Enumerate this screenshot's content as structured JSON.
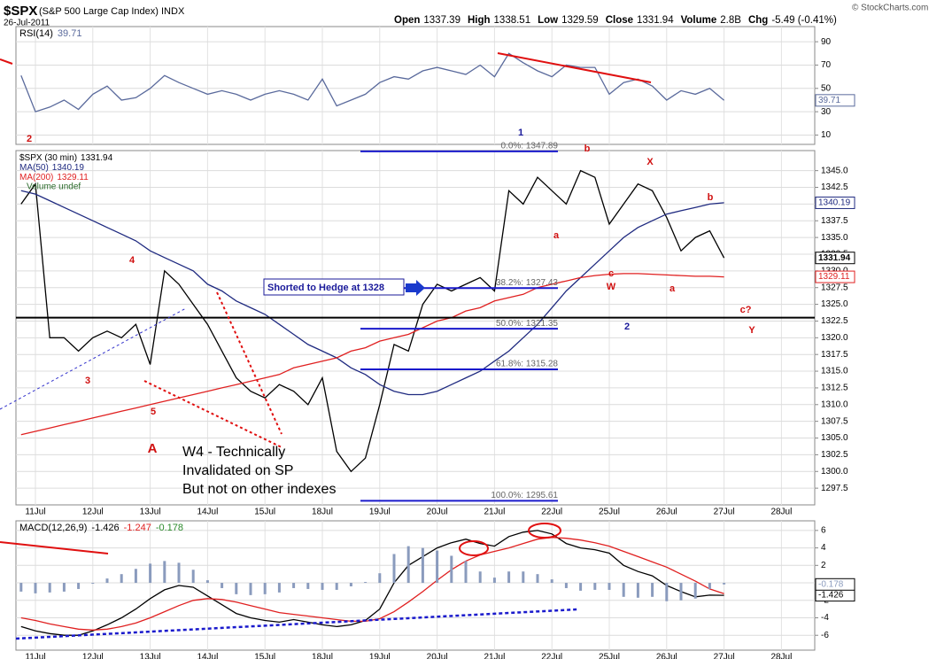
{
  "header": {
    "symbol": "$SPX",
    "name": "(S&P 500 Large Cap Index) INDX",
    "date": "26-Jul-2011",
    "fields": [
      {
        "label": "Open",
        "value": 1337.39
      },
      {
        "label": "High",
        "value": 1338.51
      },
      {
        "label": "Low",
        "value": 1329.59
      },
      {
        "label": "Close",
        "value": 1331.94
      },
      {
        "label": "Volume",
        "value": "2.8B"
      },
      {
        "label": "Chg",
        "value": "-5.49 (-0.41%)"
      }
    ],
    "source": "© StockCharts.com"
  },
  "chart_data": [
    {
      "type": "line",
      "title": "RSI(14)",
      "x": [
        null,
        "11Jul",
        null,
        null,
        null,
        "12Jul",
        null,
        null,
        null,
        "13Jul",
        null,
        null,
        null,
        "14Jul",
        null,
        null,
        null,
        "15Jul",
        null,
        null,
        null,
        "18Jul",
        null,
        null,
        null,
        "19Jul",
        null,
        null,
        null,
        "20Jul",
        null,
        null,
        null,
        "21Jul",
        null,
        null,
        null,
        "22Jul",
        null,
        null,
        null,
        "25Jul",
        null,
        null,
        null,
        "26Jul",
        null,
        null,
        null,
        "27Jul",
        null,
        null,
        null,
        "28Jul"
      ],
      "series": [
        {
          "color": "#5a6a9c",
          "label_last": true,
          "values": [
            61,
            30,
            34,
            40,
            32,
            45,
            52,
            40,
            42,
            50,
            61,
            55,
            50,
            45,
            48,
            45,
            40,
            45,
            48,
            45,
            40,
            58,
            35,
            40,
            45,
            55,
            60,
            58,
            65,
            68,
            65,
            62,
            70,
            60,
            80,
            72,
            65,
            60,
            70,
            68,
            68,
            45,
            55,
            58,
            52,
            40,
            48,
            45,
            50,
            39.71,
            null,
            null,
            null,
            null
          ]
        }
      ],
      "ylim": [
        2,
        103
      ],
      "yticks": [
        10,
        30,
        50,
        70,
        90
      ],
      "grid": true
    },
    {
      "type": "line",
      "x": [
        null,
        "11Jul",
        null,
        null,
        null,
        "12Jul",
        null,
        null,
        null,
        "13Jul",
        null,
        null,
        null,
        "14Jul",
        null,
        null,
        null,
        "15Jul",
        null,
        null,
        null,
        "18Jul",
        null,
        null,
        null,
        "19Jul",
        null,
        null,
        null,
        "20Jul",
        null,
        null,
        null,
        "21Jul",
        null,
        null,
        null,
        "22Jul",
        null,
        null,
        null,
        "25Jul",
        null,
        null,
        null,
        "26Jul",
        null,
        null,
        null,
        "27Jul",
        null,
        null,
        null,
        "28Jul"
      ],
      "series": [
        {
          "name": "$SPX (30 min)",
          "color": "#000000",
          "label_last": true,
          "values": [
            1340,
            1343,
            1320,
            1320,
            1318,
            1320,
            1321,
            1320,
            1322,
            1316,
            1330,
            1328,
            1325,
            1322,
            1318,
            1314,
            1312,
            1311,
            1313,
            1312,
            1310,
            1314,
            1303,
            1300,
            1302,
            1310,
            1319,
            1318,
            1325,
            1328,
            1327,
            1328,
            1329,
            1327,
            1342,
            1340,
            1344,
            1342,
            1340,
            1345,
            1344,
            1337,
            1340,
            1343,
            1342,
            1338,
            1333,
            1335,
            1336,
            1331.94,
            null,
            null,
            null,
            null
          ]
        },
        {
          "name": "MA(50)",
          "color": "#1f2a80",
          "label_last": true,
          "values": [
            1342,
            1341.5,
            1340.5,
            1339.5,
            1338.5,
            1337.5,
            1336.5,
            1335.5,
            1334.5,
            1333,
            1332,
            1331,
            1330,
            1328,
            1327,
            1325.5,
            1324.5,
            1323.5,
            1322,
            1320.5,
            1319,
            1318,
            1317,
            1315.5,
            1314.5,
            1313,
            1312,
            1311.5,
            1311.5,
            1312,
            1313,
            1314,
            1315,
            1316.5,
            1318,
            1320,
            1322,
            1324.5,
            1327,
            1329,
            1331,
            1333,
            1335,
            1336.5,
            1337.5,
            1338.5,
            1339,
            1339.5,
            1340,
            1340.19,
            null,
            null,
            null,
            null
          ]
        },
        {
          "name": "MA(200)",
          "color": "#e02020",
          "label_last": true,
          "values": [
            1305.5,
            1306,
            1306.5,
            1307,
            1307.5,
            1308,
            1308.5,
            1309,
            1309.5,
            1310,
            1310.5,
            1311,
            1311.5,
            1312,
            1312.5,
            1313,
            1313.5,
            1314,
            1314.5,
            1315.5,
            1316,
            1316.5,
            1317,
            1318,
            1318.5,
            1319.5,
            1320,
            1320.5,
            1321.5,
            1322.5,
            1323,
            1324,
            1324.5,
            1325.5,
            1326,
            1326.5,
            1327.5,
            1328,
            1328.5,
            1329,
            1329.3,
            1329.5,
            1329.6,
            1329.6,
            1329.5,
            1329.4,
            1329.3,
            1329.2,
            1329.2,
            1329.11,
            null,
            null,
            null,
            null
          ]
        }
      ],
      "volume_label": "Volume undef",
      "ylim": [
        1295,
        1348
      ],
      "yticks": [
        1297.5,
        {
          "value": 1300,
          "label": "1300.0"
        },
        1302.5,
        {
          "value": 1305,
          "label": "1305.0"
        },
        1307.5,
        {
          "value": 1310,
          "label": "1310.0"
        },
        1312.5,
        {
          "value": 1315,
          "label": "1315.0"
        },
        1317.5,
        {
          "value": 1320,
          "label": "1320.0"
        },
        1322.5,
        {
          "value": 1325,
          "label": "1325.0"
        },
        1327.5,
        {
          "value": 1330,
          "label": "1330.0"
        },
        1332.5,
        {
          "value": 1335,
          "label": "1335.0"
        },
        1337.5,
        {
          "value": 1340,
          "label": "1340.0"
        },
        1342.5,
        {
          "value": 1345,
          "label": "1345.0"
        }
      ],
      "grid": true,
      "level": 1323,
      "fib_levels": [
        {
          "value": 1347.89,
          "label": "0.0%: 1347.89"
        },
        {
          "value": 1327.43,
          "label": "38.2%: 1327.43"
        },
        {
          "value": 1321.35,
          "label": "50.0%: 1321.35"
        },
        {
          "value": 1315.28,
          "label": "61.8%: 1315.28"
        },
        {
          "value": 1295.61,
          "label": "100.0%: 1295.61"
        }
      ],
      "annotations": [
        "2",
        "1",
        "b",
        "X",
        "4",
        "a",
        "3",
        "5",
        "A",
        "c",
        "W",
        "b",
        "a",
        "2",
        "c?",
        "Y"
      ],
      "callout": "Shorted to Hedge at 1328",
      "note": [
        "W4 - Technically",
        "Invalidated on SP",
        "But not on other indexes"
      ]
    },
    {
      "type": "line",
      "title": "MACD(12,26,9)",
      "x": [
        null,
        "11Jul",
        null,
        null,
        null,
        "12Jul",
        null,
        null,
        null,
        "13Jul",
        null,
        null,
        null,
        "14Jul",
        null,
        null,
        null,
        "15Jul",
        null,
        null,
        null,
        "18Jul",
        null,
        null,
        null,
        "19Jul",
        null,
        null,
        null,
        "20Jul",
        null,
        null,
        null,
        "21Jul",
        null,
        null,
        null,
        "22Jul",
        null,
        null,
        null,
        "25Jul",
        null,
        null,
        null,
        "26Jul",
        null,
        null,
        null,
        "27Jul",
        null,
        null,
        null,
        "28Jul"
      ],
      "series": [
        {
          "color": "#000000",
          "label_last": true,
          "values": [
            -5,
            -5.5,
            -5.8,
            -6,
            -6,
            -5.5,
            -4.8,
            -4,
            -3,
            -1.8,
            -0.8,
            -0.3,
            -0.5,
            -1.5,
            -2.5,
            -3.5,
            -4,
            -4.3,
            -4.5,
            -4.2,
            -4.5,
            -4.8,
            -5,
            -4.8,
            -4.3,
            -3,
            0,
            2,
            3,
            4,
            4.6,
            5,
            4.5,
            4.2,
            5.3,
            5.8,
            6,
            5.6,
            4.5,
            4,
            3.8,
            3.4,
            2,
            1.3,
            0.8,
            -0.3,
            -1,
            -1.6,
            -1.4,
            -1.426,
            null,
            null,
            null,
            null
          ]
        },
        {
          "color": "#e02020",
          "label_last": false,
          "values": [
            -4,
            -4.3,
            -4.7,
            -5,
            -5.3,
            -5.4,
            -5.3,
            -5,
            -4.6,
            -4,
            -3.3,
            -2.6,
            -2,
            -1.8,
            -1.9,
            -2.2,
            -2.6,
            -3,
            -3.4,
            -3.6,
            -3.8,
            -4,
            -4.2,
            -4.4,
            -4.4,
            -4.1,
            -3.3,
            -2.2,
            -1,
            0.3,
            1.5,
            2.5,
            3.2,
            3.6,
            4,
            4.5,
            5,
            5.2,
            5.1,
            4.9,
            4.6,
            4.2,
            3.6,
            3,
            2.4,
            1.8,
            1,
            0.2,
            -0.7,
            -1.247,
            null,
            null,
            null,
            null
          ]
        },
        {
          "type": "bar",
          "color": "#8a9bbd",
          "label_last": true,
          "values": [
            -1,
            -1.2,
            -1.1,
            -1,
            -0.7,
            -0.1,
            0.5,
            1,
            1.6,
            2.2,
            2.5,
            2.3,
            1.5,
            0.3,
            -0.6,
            -1.3,
            -1.4,
            -1.3,
            -1.1,
            -0.6,
            -0.7,
            -0.8,
            -0.8,
            -0.4,
            0.1,
            1.1,
            3.3,
            4.2,
            4,
            3.7,
            3.1,
            2.5,
            1.3,
            0.6,
            1.3,
            1.3,
            1,
            0.4,
            -0.6,
            -0.9,
            -0.8,
            -0.8,
            -1.6,
            -1.7,
            -1.6,
            -2.1,
            -2,
            -1.8,
            -0.7,
            -0.178,
            null,
            null,
            null,
            null
          ]
        }
      ],
      "ylim": [
        -7.7,
        7.1
      ],
      "yticks": [
        -6,
        -4,
        -2,
        0,
        2,
        4,
        6
      ],
      "grid": true
    }
  ]
}
